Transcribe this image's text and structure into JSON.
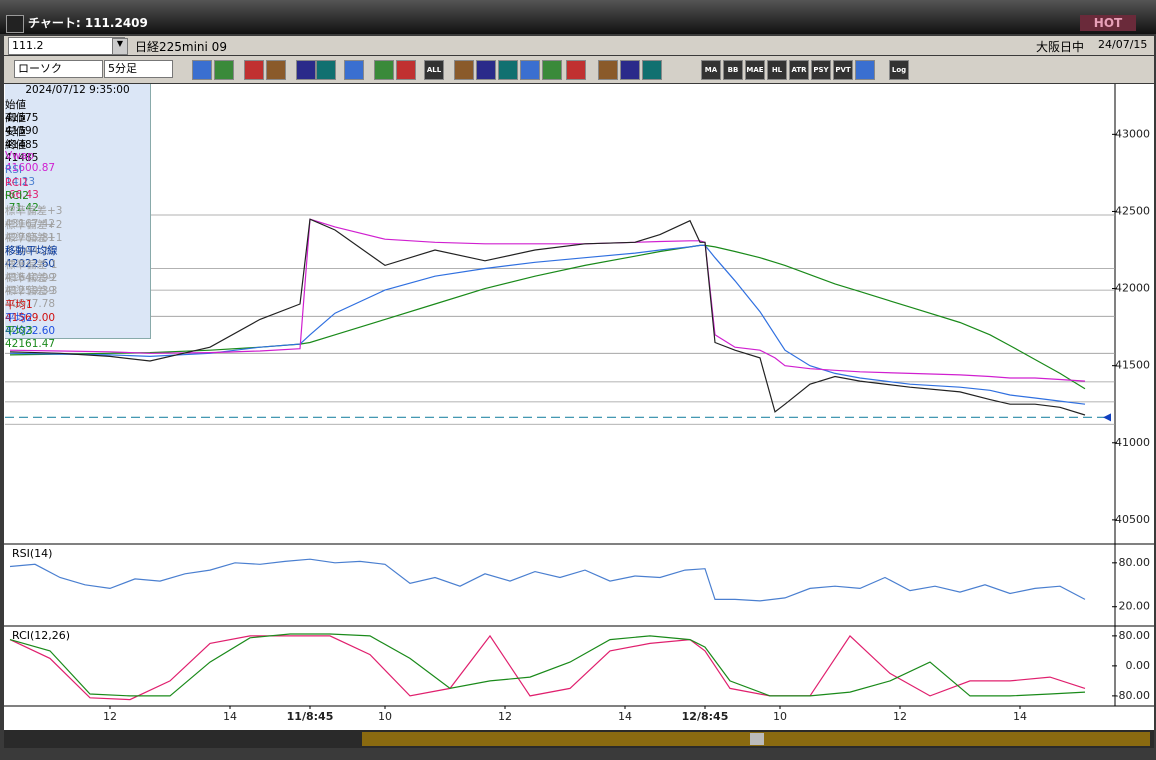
{
  "window": {
    "title": "チャート: 111.2409",
    "hot": "HOT"
  },
  "toolbar": {
    "code": "111.2",
    "instrument": "日経225mini 09",
    "session": "大阪日中",
    "date": "24/07/15",
    "chart_kind": "ローソク",
    "interval": "5分足",
    "icons": [
      "ALL",
      "MA",
      "BB",
      "MAE",
      "HL",
      "ATR",
      "PSY",
      "PVT",
      "Log"
    ]
  },
  "info_panel": {
    "datetime": "2024/07/12 9:35:00",
    "rows": [
      [
        "始値",
        "41575"
      ],
      [
        "高値",
        "41590"
      ],
      [
        "安値",
        "41485"
      ],
      [
        "終値",
        "41485"
      ],
      [
        "Vwap",
        "41600.87"
      ],
      [
        "RSI",
        "14.23"
      ],
      [
        "RCI1",
        "-66.43"
      ],
      [
        "RCI2",
        "-71.42"
      ],
      [
        "標準偏差+3",
        "43167.42"
      ],
      [
        "標準偏差+2",
        "42785.81"
      ],
      [
        "標準偏差+1",
        "42404.21"
      ],
      [
        "移動平均線",
        "42022.60"
      ],
      [
        "標準偏差-1",
        "41640.99"
      ],
      [
        "標準偏差-2",
        "41259.39"
      ],
      [
        "標準偏差-3",
        "40877.78"
      ],
      [
        "平均1",
        "41569.00"
      ],
      [
        "平均2",
        "42022.60"
      ],
      [
        "平均3",
        "42161.47"
      ]
    ]
  },
  "chart_data": [
    {
      "type": "line",
      "xlim": [
        -1,
        221
      ],
      "ylim": [
        40350,
        43320
      ],
      "yticks": [
        43000,
        42500,
        42000,
        41500,
        41000,
        40500
      ],
      "levels": [
        42477,
        42130,
        41990,
        41820,
        41580,
        41395,
        41265,
        41120
      ],
      "current": 41165,
      "x": [
        0,
        10,
        20,
        28,
        40,
        50,
        58,
        60,
        65,
        75,
        85,
        95,
        105,
        115,
        125,
        130,
        136,
        138,
        139,
        141,
        145,
        150,
        153,
        155,
        160,
        165,
        170,
        180,
        190,
        196,
        200,
        205,
        210,
        215
      ],
      "series": [
        {
          "name": "平均3",
          "color": "#1a8a1a",
          "values": [
            41570,
            41575,
            41580,
            41585,
            41600,
            41620,
            41640,
            41650,
            41700,
            41800,
            41900,
            42000,
            42080,
            42150,
            42210,
            42240,
            42270,
            42280,
            42280,
            42270,
            42240,
            42200,
            42170,
            42150,
            42090,
            42030,
            41980,
            41880,
            41780,
            41700,
            41630,
            41540,
            41450,
            41350
          ]
        },
        {
          "name": "平均2",
          "color": "#3070e0",
          "values": [
            41580,
            41575,
            41570,
            41560,
            41580,
            41620,
            41640,
            41700,
            41840,
            41990,
            42080,
            42130,
            42170,
            42200,
            42230,
            42250,
            42270,
            42280,
            42280,
            42200,
            42050,
            41850,
            41700,
            41600,
            41500,
            41450,
            41420,
            41380,
            41360,
            41340,
            41310,
            41290,
            41270,
            41250
          ]
        },
        {
          "name": "Vwap",
          "color": "#d020d0",
          "values": [
            41600,
            41595,
            41590,
            41580,
            41585,
            41595,
            41610,
            42450,
            42400,
            42320,
            42300,
            42290,
            42290,
            42290,
            42300,
            42305,
            42310,
            42310,
            42300,
            41700,
            41620,
            41600,
            41550,
            41500,
            41480,
            41470,
            41460,
            41450,
            41440,
            41430,
            41420,
            41420,
            41410,
            41400
          ]
        },
        {
          "name": "終値",
          "color": "#222222",
          "values": [
            41590,
            41580,
            41560,
            41530,
            41620,
            41800,
            41900,
            42450,
            42380,
            42150,
            42250,
            42180,
            42250,
            42290,
            42300,
            42350,
            42440,
            42300,
            42300,
            41650,
            41600,
            41550,
            41200,
            41250,
            41380,
            41430,
            41400,
            41360,
            41330,
            41280,
            41250,
            41250,
            41230,
            41180
          ]
        }
      ]
    },
    {
      "type": "line",
      "title": "RSI(14)",
      "xlim": [
        -1,
        221
      ],
      "ylim": [
        -5,
        103
      ],
      "yticks": [
        {
          "value": 80,
          "label": "80.00"
        },
        {
          "value": 20,
          "label": "20.00"
        }
      ],
      "x": [
        0,
        5,
        10,
        15,
        20,
        25,
        30,
        35,
        40,
        45,
        50,
        55,
        60,
        65,
        70,
        75,
        80,
        85,
        90,
        95,
        100,
        105,
        110,
        115,
        120,
        125,
        130,
        135,
        139,
        141,
        145,
        150,
        155,
        160,
        165,
        170,
        175,
        180,
        185,
        190,
        195,
        200,
        205,
        210,
        215
      ],
      "series": [
        {
          "name": "RSI",
          "color": "#4a7fd0",
          "values": [
            75,
            78,
            60,
            50,
            45,
            58,
            55,
            65,
            70,
            80,
            78,
            82,
            85,
            80,
            82,
            78,
            52,
            60,
            48,
            65,
            55,
            68,
            60,
            70,
            55,
            62,
            60,
            70,
            72,
            30,
            30,
            28,
            32,
            45,
            48,
            45,
            60,
            42,
            48,
            40,
            50,
            38,
            45,
            48,
            30
          ]
        }
      ]
    },
    {
      "type": "line",
      "title": "RCI(12,26)",
      "xlim": [
        -1,
        221
      ],
      "ylim": [
        -107,
        101
      ],
      "yticks": [
        {
          "value": 80,
          "label": "80.00"
        },
        {
          "value": 0,
          "label": "0.00"
        },
        {
          "value": -80,
          "label": "-80.00"
        }
      ],
      "xticks": [
        {
          "value": 20,
          "label": "12"
        },
        {
          "value": 44,
          "label": "14"
        },
        {
          "value": 60,
          "label": "11/8:45"
        },
        {
          "value": 75,
          "label": "10"
        },
        {
          "value": 99,
          "label": "12"
        },
        {
          "value": 123,
          "label": "14"
        },
        {
          "value": 139,
          "label": "12/8:45"
        },
        {
          "value": 154,
          "label": "10"
        },
        {
          "value": 178,
          "label": "12"
        },
        {
          "value": 202,
          "label": "14"
        }
      ],
      "x": [
        0,
        8,
        16,
        24,
        32,
        40,
        48,
        56,
        64,
        72,
        80,
        88,
        96,
        104,
        112,
        120,
        128,
        136,
        139,
        144,
        152,
        160,
        168,
        176,
        184,
        192,
        200,
        208,
        215
      ],
      "series": [
        {
          "name": "RCI1",
          "color": "#e0206e",
          "values": [
            70,
            20,
            -85,
            -90,
            -40,
            60,
            80,
            80,
            80,
            30,
            -80,
            -60,
            80,
            -80,
            -60,
            40,
            60,
            70,
            40,
            -60,
            -80,
            -80,
            80,
            -20,
            -80,
            -40,
            -40,
            -30,
            -60
          ]
        },
        {
          "name": "RCI2",
          "color": "#1a8a1a",
          "values": [
            70,
            40,
            -75,
            -80,
            -80,
            10,
            75,
            85,
            85,
            80,
            20,
            -60,
            -40,
            -30,
            10,
            70,
            80,
            70,
            50,
            -40,
            -80,
            -80,
            -70,
            -40,
            10,
            -80,
            -80,
            -75,
            -70
          ]
        }
      ]
    }
  ]
}
